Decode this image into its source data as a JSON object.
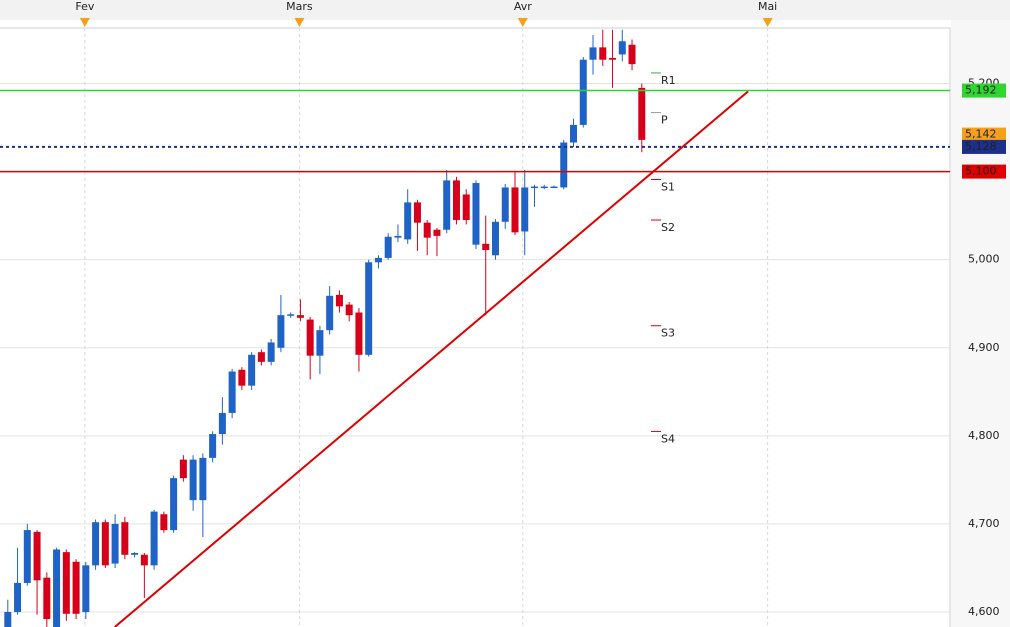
{
  "chart_data": {
    "type": "candlestick",
    "months": [
      {
        "label": "Fev",
        "x": 7.9
      },
      {
        "label": "Mars",
        "x": 29.9
      },
      {
        "label": "Avr",
        "x": 52.8
      },
      {
        "label": "Mai",
        "x": 77.9
      }
    ],
    "xlim": [
      -0.8,
      96.6
    ],
    "ylim": [
      4583,
      5263
    ],
    "yticks": [
      {
        "value": 4600,
        "label": "4,600"
      },
      {
        "value": 4700,
        "label": "4,700"
      },
      {
        "value": 4800,
        "label": "4,800"
      },
      {
        "value": 4900,
        "label": "4,900"
      },
      {
        "value": 5000,
        "label": "5,000"
      },
      {
        "value": 5100,
        "label": "5,100"
      },
      {
        "value": 5200,
        "label": "5,200"
      }
    ],
    "grid": true,
    "up_color": "#1f63c6",
    "down_color": "#d7001a",
    "open": [
      4583,
      4600,
      4633,
      4691,
      4639,
      4583,
      4668,
      4657,
      4600,
      4653,
      4702,
      4655,
      4702,
      4665,
      4665,
      4653,
      4711,
      4693,
      4773,
      4727,
      4727,
      4775,
      4802,
      4826,
      4875,
      4857,
      4895,
      4884,
      4900,
      4937,
      4937,
      4932,
      4891,
      4920,
      4960,
      4949,
      4940,
      4892,
      4997,
      5002,
      5025,
      5023,
      5065,
      5042,
      5034,
      5034,
      5090,
      5074,
      5017,
      5018,
      5005,
      5043,
      5082,
      5032,
      5082,
      5083,
      5083,
      5082,
      5133,
      5153,
      5227,
      5241,
      5229,
      5233,
      5244,
      5195
    ],
    "high": [
      4614,
      4673,
      4700,
      4693,
      4645,
      4673,
      4671,
      4660,
      4657,
      4705,
      4705,
      4711,
      4708,
      4668,
      4667,
      4716,
      4714,
      4755,
      4778,
      4778,
      4780,
      4805,
      4844,
      4876,
      4878,
      4895,
      4898,
      4910,
      4960,
      4940,
      4955,
      4935,
      4925,
      4970,
      4965,
      4952,
      4945,
      5000,
      5005,
      5030,
      5040,
      5080,
      5068,
      5045,
      5036,
      5102,
      5094,
      5080,
      5090,
      5050,
      5046,
      5086,
      5100,
      5102,
      5085,
      5085,
      5084,
      5136,
      5160,
      5230,
      5255,
      5261,
      5261,
      5261,
      5250,
      5200
    ],
    "low": [
      4583,
      4597,
      4630,
      4597,
      4583,
      4583,
      4590,
      4592,
      4592,
      4648,
      4650,
      4650,
      4660,
      4662,
      4616,
      4648,
      4690,
      4690,
      4748,
      4715,
      4685,
      4770,
      4790,
      4820,
      4852,
      4852,
      4880,
      4880,
      4895,
      4934,
      4930,
      4864,
      4870,
      4915,
      4940,
      4930,
      4873,
      4890,
      4990,
      5000,
      5020,
      5018,
      5010,
      5005,
      5004,
      5030,
      5040,
      5040,
      5012,
      4937,
      5000,
      5035,
      5028,
      5005,
      5060,
      5080,
      5082,
      5080,
      5128,
      5150,
      5210,
      5220,
      5195,
      5225,
      5215,
      5122
    ],
    "close": [
      4600,
      4633,
      4693,
      4636,
      4592,
      4671,
      4598,
      4598,
      4653,
      4702,
      4653,
      4700,
      4665,
      4667,
      4653,
      4714,
      4693,
      4752,
      4752,
      4773,
      4775,
      4802,
      4826,
      4873,
      4857,
      4892,
      4884,
      4906,
      4937,
      4938,
      4934,
      4891,
      4920,
      4959,
      4947,
      4937,
      4892,
      4997,
      5002,
      5026,
      5027,
      5065,
      5042,
      5025,
      5027,
      5090,
      5045,
      5045,
      5087,
      5011,
      5043,
      5082,
      5031,
      5082,
      5083,
      5083,
      5083,
      5133,
      5153,
      5227,
      5241,
      5227,
      5227,
      5248,
      5222,
      5136
    ],
    "levels": [
      {
        "value": 5192,
        "label": "5,192",
        "color": "#2fd62f",
        "style": "solid"
      },
      {
        "value": 5142,
        "label": "5,142",
        "color": "#f5a01a",
        "style": "none"
      },
      {
        "value": 5128,
        "label": "5,128",
        "color": "#1c2f8a",
        "style": "dotted"
      },
      {
        "value": 5100,
        "label": "5,100",
        "color": "#e10000",
        "style": "solid"
      }
    ],
    "pivots": [
      {
        "name": "R1",
        "value": 5212,
        "color": "#2fb82f"
      },
      {
        "name": "P",
        "value": 5167,
        "color": "#999999"
      },
      {
        "name": "S1",
        "value": 5091,
        "color": "#d7001a"
      },
      {
        "name": "S2",
        "value": 5045,
        "color": "#d7001a"
      },
      {
        "name": "S3",
        "value": 4925,
        "color": "#d7001a"
      },
      {
        "name": "S4",
        "value": 4805,
        "color": "#d7001a"
      }
    ],
    "trendline": {
      "from": {
        "x": 10.97,
        "y": 4583
      },
      "to": {
        "x": 75.9,
        "y": 5191
      },
      "color": "#e10000"
    }
  }
}
